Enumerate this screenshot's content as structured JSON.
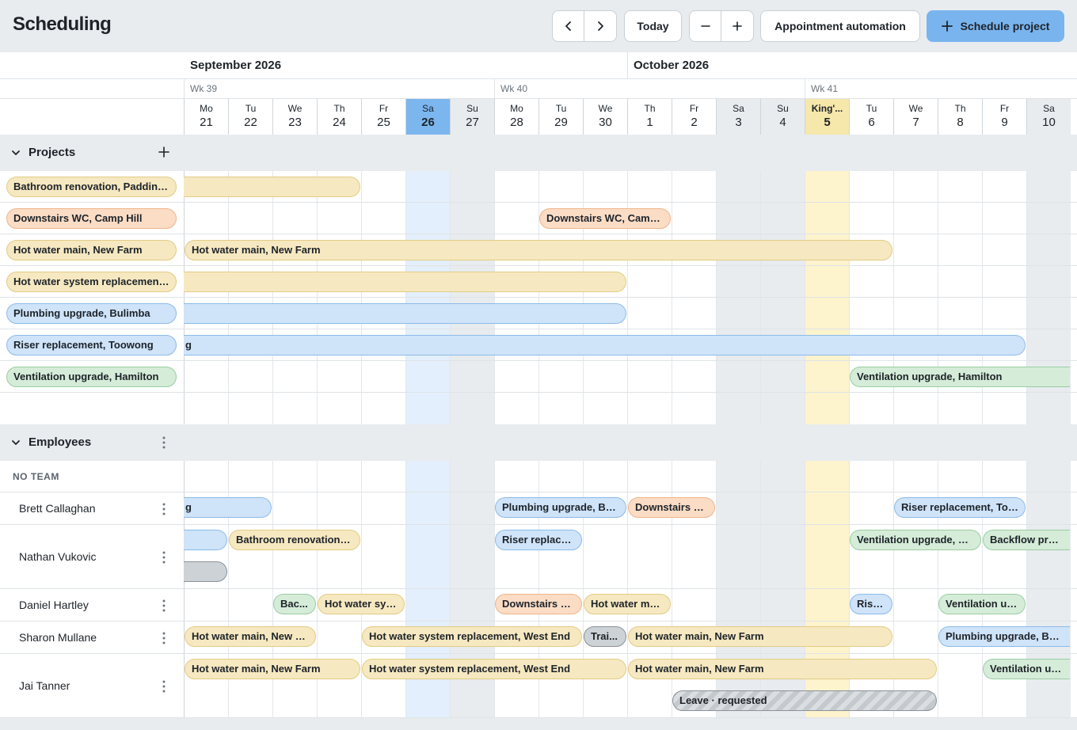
{
  "header": {
    "title": "Scheduling",
    "today_label": "Today",
    "automation_label": "Appointment automation",
    "schedule_label": "Schedule project"
  },
  "months": [
    {
      "label": "September 2026",
      "start_col": 0
    },
    {
      "label": "October 2026",
      "start_col": 10
    }
  ],
  "weeks": [
    {
      "label": "Wk 39",
      "start_col": 0
    },
    {
      "label": "Wk 40",
      "start_col": 7
    },
    {
      "label": "Wk 41",
      "start_col": 14
    }
  ],
  "days": [
    {
      "dow": "Mo",
      "num": "21"
    },
    {
      "dow": "Tu",
      "num": "22"
    },
    {
      "dow": "We",
      "num": "23"
    },
    {
      "dow": "Th",
      "num": "24"
    },
    {
      "dow": "Fr",
      "num": "25"
    },
    {
      "dow": "Sa",
      "num": "26",
      "today": true
    },
    {
      "dow": "Su",
      "num": "27"
    },
    {
      "dow": "Mo",
      "num": "28"
    },
    {
      "dow": "Tu",
      "num": "29"
    },
    {
      "dow": "We",
      "num": "30"
    },
    {
      "dow": "Th",
      "num": "1"
    },
    {
      "dow": "Fr",
      "num": "2"
    },
    {
      "dow": "Sa",
      "num": "3"
    },
    {
      "dow": "Su",
      "num": "4"
    },
    {
      "dow": "King'...",
      "num": "5",
      "holiday": true
    },
    {
      "dow": "Tu",
      "num": "6"
    },
    {
      "dow": "We",
      "num": "7"
    },
    {
      "dow": "Th",
      "num": "8"
    },
    {
      "dow": "Fr",
      "num": "9"
    },
    {
      "dow": "Sa",
      "num": "10"
    }
  ],
  "colors": {
    "yellow_fill": "#f6e8c0",
    "yellow_border": "#e2cc86",
    "orange_fill": "#fbdcc5",
    "orange_border": "#efb58c",
    "blue_fill": "#cfe3f9",
    "blue_border": "#8dbbe8",
    "green_fill": "#d5ecd8",
    "green_border": "#99cda2",
    "gray_fill": "#cdd2d6",
    "gray_border": "#8b9298",
    "today_col": "#e3effc",
    "today_head": "#7cb6ef",
    "holiday_col": "#fdf3cd",
    "holiday_head": "#f6e7aa",
    "weekend_col": "#e8ecef"
  },
  "projects_section": {
    "title": "Projects",
    "add_icon": "plus-icon"
  },
  "projects": [
    {
      "name": "Bathroom renovation, Paddingt...",
      "color": "yellow",
      "bars": [
        {
          "start": 0,
          "end": 4,
          "cut_left": true,
          "label": ""
        }
      ]
    },
    {
      "name": "Downstairs WC, Camp Hill",
      "color": "orange",
      "bars": [
        {
          "start": 8,
          "end": 11,
          "label": "Downstairs WC, Camp Hill"
        }
      ]
    },
    {
      "name": "Hot water main, New Farm",
      "color": "yellow",
      "bars": [
        {
          "start": 0,
          "end": 16,
          "label": "Hot water main, New Farm"
        }
      ]
    },
    {
      "name": "Hot water system replacement,...",
      "color": "yellow",
      "bars": [
        {
          "start": 0,
          "end": 10,
          "cut_left": true,
          "label": ""
        }
      ]
    },
    {
      "name": "Plumbing upgrade, Bulimba",
      "color": "blue",
      "bars": [
        {
          "start": 0,
          "end": 10,
          "cut_left": true,
          "label": ""
        }
      ]
    },
    {
      "name": "Riser replacement, Toowong",
      "color": "blue",
      "bars": [
        {
          "start": 0,
          "end": 19,
          "cut_left": true,
          "label": "g"
        }
      ]
    },
    {
      "name": "Ventilation upgrade, Hamilton",
      "color": "green",
      "bars": [
        {
          "start": 15,
          "end": 20,
          "cut_right": true,
          "label": "Ventilation upgrade, Hamilton"
        }
      ]
    }
  ],
  "employees_section": {
    "title": "Employees",
    "team_label": "NO TEAM"
  },
  "employees": [
    {
      "name": "Brett Callaghan",
      "lanes": 1,
      "bars": [
        {
          "start": 0,
          "end": 2,
          "lane": 0,
          "color": "blue",
          "cut_left": true,
          "label": "g"
        },
        {
          "start": 7,
          "end": 10,
          "lane": 0,
          "color": "blue",
          "label": "Plumbing upgrade, Buli..."
        },
        {
          "start": 10,
          "end": 12,
          "lane": 0,
          "color": "orange",
          "label": "Downstairs W..."
        },
        {
          "start": 16,
          "end": 19,
          "lane": 0,
          "color": "blue",
          "label": "Riser replacement, Too..."
        }
      ]
    },
    {
      "name": "Nathan Vukovic",
      "lanes": 2,
      "bars": [
        {
          "start": 0,
          "end": 1,
          "lane": 0,
          "color": "blue",
          "cut_left": true,
          "label": ""
        },
        {
          "start": 1,
          "end": 4,
          "lane": 0,
          "color": "yellow",
          "label": "Bathroom renovation, P..."
        },
        {
          "start": 7,
          "end": 9,
          "lane": 0,
          "color": "blue",
          "label": "Riser replace..."
        },
        {
          "start": 15,
          "end": 18,
          "lane": 0,
          "color": "green",
          "label": "Ventilation upgrade, Ha..."
        },
        {
          "start": 18,
          "end": 20,
          "lane": 0,
          "color": "green",
          "cut_right": true,
          "label": "Backflow preventio"
        },
        {
          "start": 0,
          "end": 1,
          "lane": 1,
          "color": "gray",
          "cut_left": true,
          "label": ""
        }
      ]
    },
    {
      "name": "Daniel Hartley",
      "lanes": 1,
      "bars": [
        {
          "start": 2,
          "end": 3,
          "lane": 0,
          "color": "green",
          "label": "Bac..."
        },
        {
          "start": 3,
          "end": 5,
          "lane": 0,
          "color": "yellow",
          "label": "Hot water sys..."
        },
        {
          "start": 7,
          "end": 9,
          "lane": 0,
          "color": "orange",
          "label": "Downstairs W..."
        },
        {
          "start": 9,
          "end": 11,
          "lane": 0,
          "color": "yellow",
          "label": "Hot water mai..."
        },
        {
          "start": 15,
          "end": 16,
          "lane": 0,
          "color": "blue",
          "label": "Rise..."
        },
        {
          "start": 17,
          "end": 19,
          "lane": 0,
          "color": "green",
          "label": "Ventilation up..."
        }
      ]
    },
    {
      "name": "Sharon Mullane",
      "lanes": 1,
      "bars": [
        {
          "start": 0,
          "end": 3,
          "lane": 0,
          "color": "yellow",
          "label": "Hot water main, New F..."
        },
        {
          "start": 4,
          "end": 9,
          "lane": 0,
          "color": "yellow",
          "label": "Hot water system replacement, West End"
        },
        {
          "start": 9,
          "end": 10,
          "lane": 0,
          "color": "gray",
          "label": "Trai..."
        },
        {
          "start": 10,
          "end": 16,
          "lane": 0,
          "color": "yellow",
          "label": "Hot water main, New Farm"
        },
        {
          "start": 17,
          "end": 20,
          "lane": 0,
          "color": "blue",
          "cut_right": true,
          "label": "Plumbing upgrade, Bulimba"
        }
      ]
    },
    {
      "name": "Jai Tanner",
      "lanes": 2,
      "bars": [
        {
          "start": 0,
          "end": 4,
          "lane": 0,
          "color": "yellow",
          "label": "Hot water main, New Farm"
        },
        {
          "start": 4,
          "end": 10,
          "lane": 0,
          "color": "yellow",
          "label": "Hot water system replacement, West End"
        },
        {
          "start": 10,
          "end": 17,
          "lane": 0,
          "color": "yellow",
          "label": "Hot water main, New Farm"
        },
        {
          "start": 18,
          "end": 20,
          "lane": 0,
          "color": "green",
          "cut_right": true,
          "label": "Ventilation upgrade"
        },
        {
          "start": 11,
          "end": 17,
          "lane": 1,
          "color": "gray",
          "hatched": true,
          "label": "Leave · requested"
        }
      ]
    }
  ]
}
